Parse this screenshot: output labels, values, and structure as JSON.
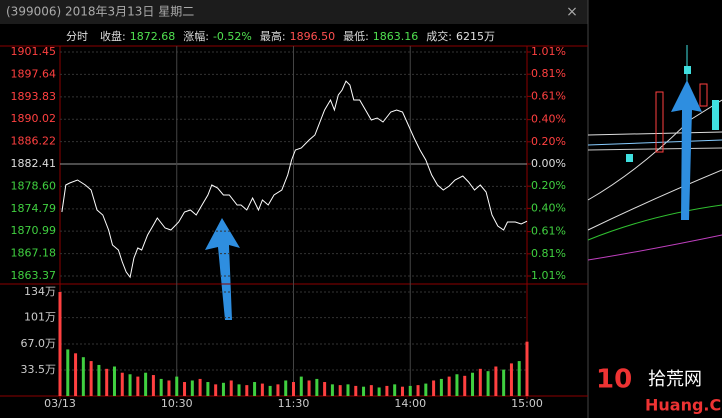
{
  "chart_data": {
    "type": "line",
    "header": "(399006) 2018年3月13日 星期二",
    "close_button": "×",
    "info": [
      {
        "label": "分时",
        "value": ""
      },
      {
        "label": "收盘:",
        "value": "1872.68",
        "color": "#50e050"
      },
      {
        "label": "涨幅:",
        "value": "-0.52%",
        "color": "#50e050"
      },
      {
        "label": "最高:",
        "value": "1896.50",
        "color": "#ff5050"
      },
      {
        "label": "最低:",
        "value": "1863.16",
        "color": "#50e050"
      },
      {
        "label": "成交:",
        "value": "6215万",
        "color": "#e0e0e0"
      }
    ],
    "color": "#ffffff",
    "up_color": "#ff4040",
    "down_color": "#40d040",
    "xlim": [
      0,
      240
    ],
    "xticks": [
      {
        "value": 0,
        "label": "03/13"
      },
      {
        "value": 60,
        "label": "10:30"
      },
      {
        "value": 120,
        "label": "11:30"
      },
      {
        "value": 180,
        "label": "14:00"
      },
      {
        "value": 240,
        "label": "15:00"
      }
    ],
    "ylim": [
      1863.37,
      1901.45
    ],
    "yticks": [
      {
        "value": 1901.45,
        "label": "1901.45"
      },
      {
        "value": 1897.64,
        "label": "1897.64"
      },
      {
        "value": 1893.83,
        "label": "1893.83"
      },
      {
        "value": 1890.02,
        "label": "1890.02"
      },
      {
        "value": 1886.22,
        "label": "1886.22"
      },
      {
        "value": 1882.41,
        "label": "1882.41"
      },
      {
        "value": 1878.6,
        "label": "1878.60"
      },
      {
        "value": 1874.79,
        "label": "1874.79"
      },
      {
        "value": 1870.99,
        "label": "1870.99"
      },
      {
        "value": 1867.18,
        "label": "1867.18"
      },
      {
        "value": 1863.37,
        "label": "1863.37"
      }
    ],
    "y2lim": [
      -1.01,
      1.01
    ],
    "y2ticks": [
      {
        "value": 1.01,
        "label": "1.01%"
      },
      {
        "value": 0.81,
        "label": "0.81%"
      },
      {
        "value": 0.61,
        "label": "0.61%"
      },
      {
        "value": 0.4,
        "label": "0.40%"
      },
      {
        "value": 0.2,
        "label": "0.20%"
      },
      {
        "value": 0,
        "label": "0.00%"
      },
      {
        "value": -0.2,
        "label": "0.20%"
      },
      {
        "value": -0.4,
        "label": "0.40%"
      },
      {
        "value": -0.61,
        "label": "0.61%"
      },
      {
        "value": -0.81,
        "label": "0.81%"
      },
      {
        "value": -1.01,
        "label": "1.01%"
      }
    ],
    "x": [
      1,
      3,
      5,
      9,
      13,
      16,
      19,
      22,
      25,
      27,
      30,
      32,
      34,
      36,
      38,
      40,
      42,
      45,
      48,
      50,
      54,
      57,
      61,
      64,
      67,
      70,
      73,
      76,
      78,
      81,
      84,
      87,
      91,
      93,
      96,
      99,
      102,
      104,
      107,
      110,
      114,
      117,
      119,
      121,
      124,
      128,
      131,
      134,
      136,
      139,
      141,
      143,
      145,
      147,
      149,
      151,
      154,
      157,
      160,
      163,
      166,
      170,
      173,
      176,
      179,
      182,
      185,
      188,
      191,
      194,
      197,
      200,
      203,
      207,
      210,
      213,
      216,
      219,
      222,
      225,
      228,
      230,
      234,
      237,
      240
    ],
    "values": [
      1874.25,
      1878.84,
      1879.18,
      1879.69,
      1878.84,
      1877.99,
      1874.59,
      1873.74,
      1871.19,
      1868.64,
      1867.79,
      1865.75,
      1864.05,
      1863.16,
      1866.43,
      1868.13,
      1867.79,
      1870.34,
      1872.04,
      1873.23,
      1871.53,
      1871.19,
      1872.55,
      1874.25,
      1874.59,
      1873.74,
      1875.44,
      1877.14,
      1878.84,
      1878.33,
      1877.14,
      1877.14,
      1875.44,
      1875.44,
      1874.59,
      1876.63,
      1874.59,
      1876.29,
      1875.44,
      1877.14,
      1877.99,
      1880.54,
      1883.09,
      1884.79,
      1885.13,
      1886.49,
      1887.34,
      1889.89,
      1891.59,
      1893.29,
      1891.59,
      1894.14,
      1894.99,
      1896.5,
      1895.84,
      1893.29,
      1893.29,
      1891.59,
      1889.89,
      1890.23,
      1889.55,
      1891.25,
      1891.59,
      1891.25,
      1889.04,
      1886.83,
      1884.79,
      1883.09,
      1880.54,
      1878.84,
      1877.99,
      1878.67,
      1879.69,
      1880.37,
      1879.35,
      1877.99,
      1878.84,
      1877.65,
      1873.74,
      1871.87,
      1871.19,
      1872.55,
      1872.55,
      1872.21,
      1872.68
    ],
    "volume": {
      "ylim": [
        0,
        134
      ],
      "yticks": [
        {
          "value": 134,
          "label": "134万"
        },
        {
          "value": 101,
          "label": "101万"
        },
        {
          "value": 67,
          "label": "67.0万"
        },
        {
          "value": 33.5,
          "label": "33.5万"
        }
      ],
      "values": [
        134,
        60,
        55,
        50,
        45,
        40,
        35,
        38,
        30,
        28,
        25,
        30,
        27,
        22,
        20,
        25,
        18,
        20,
        22,
        18,
        15,
        17,
        20,
        15,
        14,
        18,
        16,
        13,
        15,
        20,
        18,
        25,
        20,
        22,
        18,
        15,
        14,
        15,
        13,
        12,
        14,
        11,
        13,
        15,
        12,
        13,
        14,
        16,
        20,
        22,
        25,
        28,
        26,
        30,
        35,
        32,
        38,
        34,
        42,
        45,
        70
      ]
    },
    "watermark": [
      "10",
      "Huang.CN",
      "拾荒网"
    ]
  }
}
